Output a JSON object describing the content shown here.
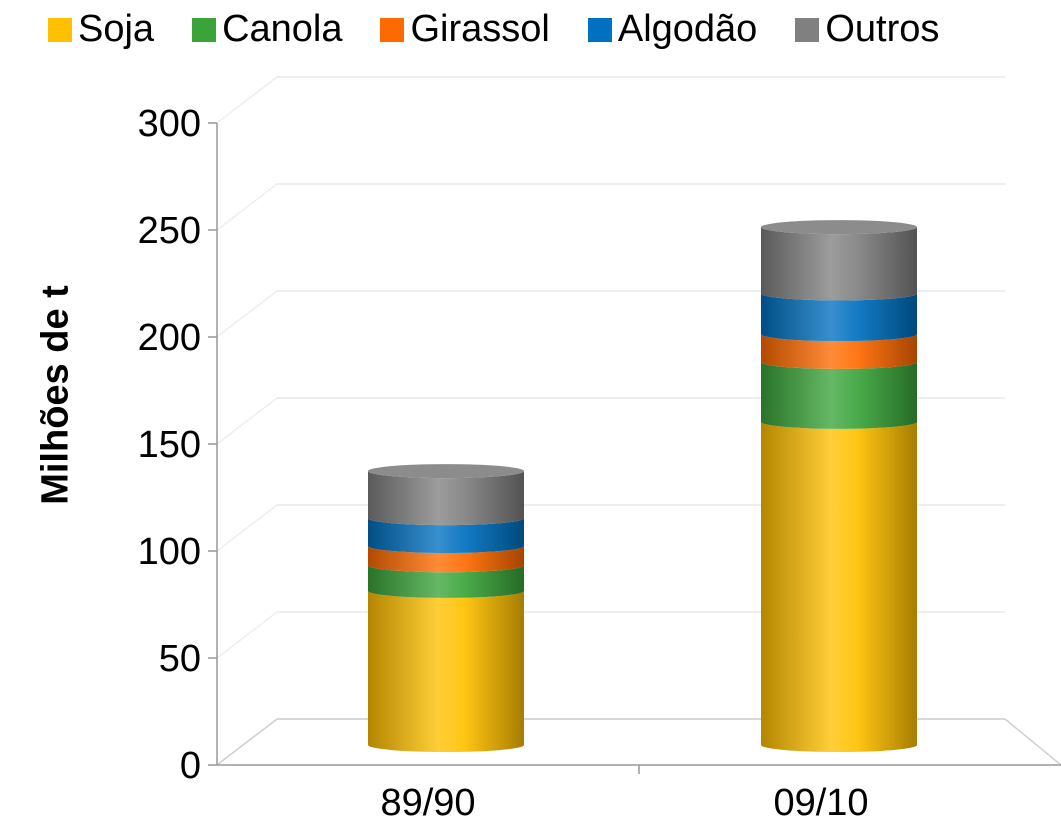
{
  "chart_data": {
    "type": "bar",
    "stacked": true,
    "three_d": true,
    "ylabel": "Milhões de t",
    "xlabel": "",
    "title": "",
    "ylim": [
      0,
      300
    ],
    "yticks": [
      0,
      50,
      100,
      150,
      200,
      250,
      300
    ],
    "categories": [
      "89/90",
      "09/10"
    ],
    "legend_position": "top",
    "grid": true,
    "series": [
      {
        "name": "Soja",
        "color": "#ffc000",
        "values": [
          72,
          151
        ]
      },
      {
        "name": "Canola",
        "color": "#3aa43a",
        "values": [
          12,
          28
        ]
      },
      {
        "name": "Girassol",
        "color": "#ff6a00",
        "values": [
          9,
          13
        ]
      },
      {
        "name": "Algodão",
        "color": "#0070c0",
        "values": [
          13,
          19
        ]
      },
      {
        "name": "Outros",
        "color": "#808080",
        "values": [
          22,
          31
        ]
      }
    ]
  }
}
